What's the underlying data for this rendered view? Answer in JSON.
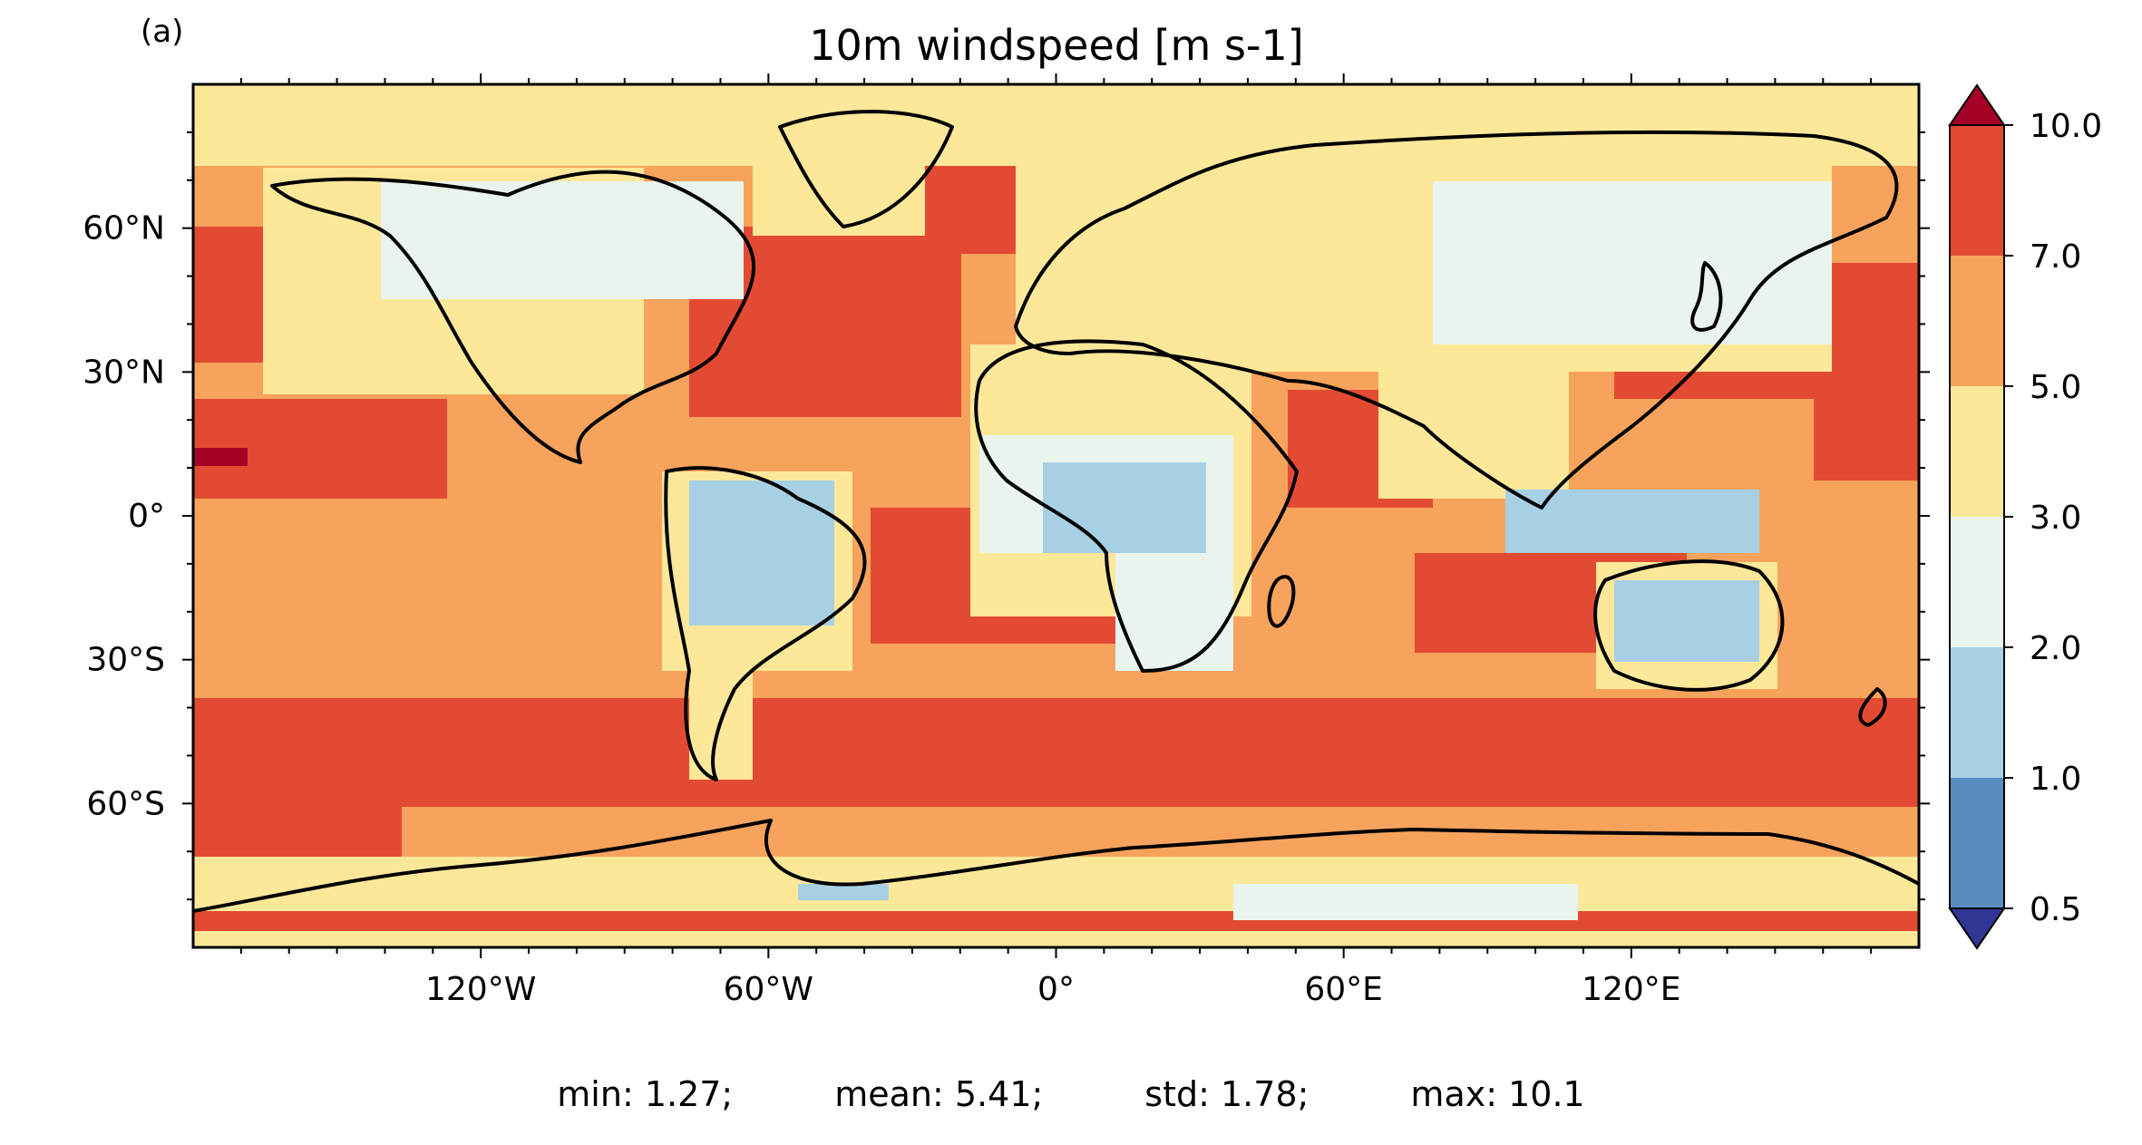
{
  "chart_data": {
    "type": "heatmap",
    "panel_label": "(a)",
    "title": "10m windspeed [m s-1]",
    "xlabel": "",
    "ylabel": "",
    "xlim": [
      -180,
      180
    ],
    "ylim": [
      -90,
      90
    ],
    "x_ticks": [
      {
        "value": -120,
        "label": "120°W"
      },
      {
        "value": -60,
        "label": "60°W"
      },
      {
        "value": 0,
        "label": "0°"
      },
      {
        "value": 60,
        "label": "60°E"
      },
      {
        "value": 120,
        "label": "120°E"
      }
    ],
    "y_ticks": [
      {
        "value": 60,
        "label": "60°N"
      },
      {
        "value": 30,
        "label": "30°N"
      },
      {
        "value": 0,
        "label": "0°"
      },
      {
        "value": -30,
        "label": "30°S"
      },
      {
        "value": -60,
        "label": "60°S"
      }
    ],
    "colorbar": {
      "levels": [
        0.5,
        1.0,
        2.0,
        3.0,
        5.0,
        7.0,
        10.0
      ],
      "tick_labels": [
        "0.5",
        "1.0",
        "2.0",
        "3.0",
        "5.0",
        "7.0",
        "10.0"
      ],
      "colors": [
        "#5a8cc2",
        "#a7d0e4",
        "#e8f4ec",
        "#fde89a",
        "#f7a35c",
        "#e34a33"
      ],
      "under_color": "#313695",
      "over_color": "#a50026",
      "extend": "both"
    },
    "stats": {
      "min": "min: 1.27;",
      "mean": "mean: 5.41;",
      "std": "std: 1.78;",
      "max": "max: 10.1"
    }
  }
}
